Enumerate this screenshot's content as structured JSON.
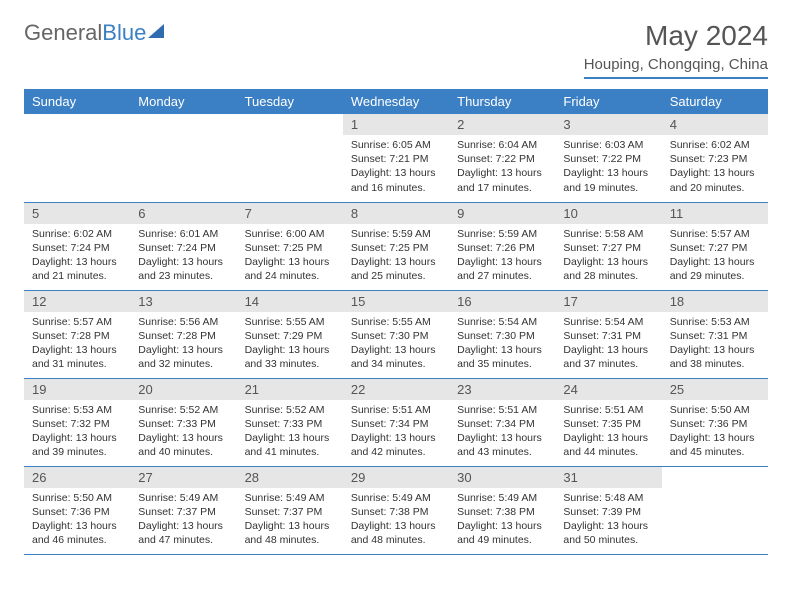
{
  "logo": {
    "part1": "General",
    "part2": "Blue"
  },
  "title": "May 2024",
  "location": "Houping, Chongqing, China",
  "weekdays": [
    "Sunday",
    "Monday",
    "Tuesday",
    "Wednesday",
    "Thursday",
    "Friday",
    "Saturday"
  ],
  "colors": {
    "accent": "#3b7fc4",
    "header_bg": "#3b7fc4",
    "daynum_bg": "#e6e6e6",
    "text": "#333333"
  },
  "weeks": [
    [
      {
        "n": "",
        "sr": "",
        "ss": "",
        "dl": ""
      },
      {
        "n": "",
        "sr": "",
        "ss": "",
        "dl": ""
      },
      {
        "n": "",
        "sr": "",
        "ss": "",
        "dl": ""
      },
      {
        "n": "1",
        "sr": "Sunrise: 6:05 AM",
        "ss": "Sunset: 7:21 PM",
        "dl": "Daylight: 13 hours and 16 minutes."
      },
      {
        "n": "2",
        "sr": "Sunrise: 6:04 AM",
        "ss": "Sunset: 7:22 PM",
        "dl": "Daylight: 13 hours and 17 minutes."
      },
      {
        "n": "3",
        "sr": "Sunrise: 6:03 AM",
        "ss": "Sunset: 7:22 PM",
        "dl": "Daylight: 13 hours and 19 minutes."
      },
      {
        "n": "4",
        "sr": "Sunrise: 6:02 AM",
        "ss": "Sunset: 7:23 PM",
        "dl": "Daylight: 13 hours and 20 minutes."
      }
    ],
    [
      {
        "n": "5",
        "sr": "Sunrise: 6:02 AM",
        "ss": "Sunset: 7:24 PM",
        "dl": "Daylight: 13 hours and 21 minutes."
      },
      {
        "n": "6",
        "sr": "Sunrise: 6:01 AM",
        "ss": "Sunset: 7:24 PM",
        "dl": "Daylight: 13 hours and 23 minutes."
      },
      {
        "n": "7",
        "sr": "Sunrise: 6:00 AM",
        "ss": "Sunset: 7:25 PM",
        "dl": "Daylight: 13 hours and 24 minutes."
      },
      {
        "n": "8",
        "sr": "Sunrise: 5:59 AM",
        "ss": "Sunset: 7:25 PM",
        "dl": "Daylight: 13 hours and 25 minutes."
      },
      {
        "n": "9",
        "sr": "Sunrise: 5:59 AM",
        "ss": "Sunset: 7:26 PM",
        "dl": "Daylight: 13 hours and 27 minutes."
      },
      {
        "n": "10",
        "sr": "Sunrise: 5:58 AM",
        "ss": "Sunset: 7:27 PM",
        "dl": "Daylight: 13 hours and 28 minutes."
      },
      {
        "n": "11",
        "sr": "Sunrise: 5:57 AM",
        "ss": "Sunset: 7:27 PM",
        "dl": "Daylight: 13 hours and 29 minutes."
      }
    ],
    [
      {
        "n": "12",
        "sr": "Sunrise: 5:57 AM",
        "ss": "Sunset: 7:28 PM",
        "dl": "Daylight: 13 hours and 31 minutes."
      },
      {
        "n": "13",
        "sr": "Sunrise: 5:56 AM",
        "ss": "Sunset: 7:28 PM",
        "dl": "Daylight: 13 hours and 32 minutes."
      },
      {
        "n": "14",
        "sr": "Sunrise: 5:55 AM",
        "ss": "Sunset: 7:29 PM",
        "dl": "Daylight: 13 hours and 33 minutes."
      },
      {
        "n": "15",
        "sr": "Sunrise: 5:55 AM",
        "ss": "Sunset: 7:30 PM",
        "dl": "Daylight: 13 hours and 34 minutes."
      },
      {
        "n": "16",
        "sr": "Sunrise: 5:54 AM",
        "ss": "Sunset: 7:30 PM",
        "dl": "Daylight: 13 hours and 35 minutes."
      },
      {
        "n": "17",
        "sr": "Sunrise: 5:54 AM",
        "ss": "Sunset: 7:31 PM",
        "dl": "Daylight: 13 hours and 37 minutes."
      },
      {
        "n": "18",
        "sr": "Sunrise: 5:53 AM",
        "ss": "Sunset: 7:31 PM",
        "dl": "Daylight: 13 hours and 38 minutes."
      }
    ],
    [
      {
        "n": "19",
        "sr": "Sunrise: 5:53 AM",
        "ss": "Sunset: 7:32 PM",
        "dl": "Daylight: 13 hours and 39 minutes."
      },
      {
        "n": "20",
        "sr": "Sunrise: 5:52 AM",
        "ss": "Sunset: 7:33 PM",
        "dl": "Daylight: 13 hours and 40 minutes."
      },
      {
        "n": "21",
        "sr": "Sunrise: 5:52 AM",
        "ss": "Sunset: 7:33 PM",
        "dl": "Daylight: 13 hours and 41 minutes."
      },
      {
        "n": "22",
        "sr": "Sunrise: 5:51 AM",
        "ss": "Sunset: 7:34 PM",
        "dl": "Daylight: 13 hours and 42 minutes."
      },
      {
        "n": "23",
        "sr": "Sunrise: 5:51 AM",
        "ss": "Sunset: 7:34 PM",
        "dl": "Daylight: 13 hours and 43 minutes."
      },
      {
        "n": "24",
        "sr": "Sunrise: 5:51 AM",
        "ss": "Sunset: 7:35 PM",
        "dl": "Daylight: 13 hours and 44 minutes."
      },
      {
        "n": "25",
        "sr": "Sunrise: 5:50 AM",
        "ss": "Sunset: 7:36 PM",
        "dl": "Daylight: 13 hours and 45 minutes."
      }
    ],
    [
      {
        "n": "26",
        "sr": "Sunrise: 5:50 AM",
        "ss": "Sunset: 7:36 PM",
        "dl": "Daylight: 13 hours and 46 minutes."
      },
      {
        "n": "27",
        "sr": "Sunrise: 5:49 AM",
        "ss": "Sunset: 7:37 PM",
        "dl": "Daylight: 13 hours and 47 minutes."
      },
      {
        "n": "28",
        "sr": "Sunrise: 5:49 AM",
        "ss": "Sunset: 7:37 PM",
        "dl": "Daylight: 13 hours and 48 minutes."
      },
      {
        "n": "29",
        "sr": "Sunrise: 5:49 AM",
        "ss": "Sunset: 7:38 PM",
        "dl": "Daylight: 13 hours and 48 minutes."
      },
      {
        "n": "30",
        "sr": "Sunrise: 5:49 AM",
        "ss": "Sunset: 7:38 PM",
        "dl": "Daylight: 13 hours and 49 minutes."
      },
      {
        "n": "31",
        "sr": "Sunrise: 5:48 AM",
        "ss": "Sunset: 7:39 PM",
        "dl": "Daylight: 13 hours and 50 minutes."
      },
      {
        "n": "",
        "sr": "",
        "ss": "",
        "dl": ""
      }
    ]
  ]
}
